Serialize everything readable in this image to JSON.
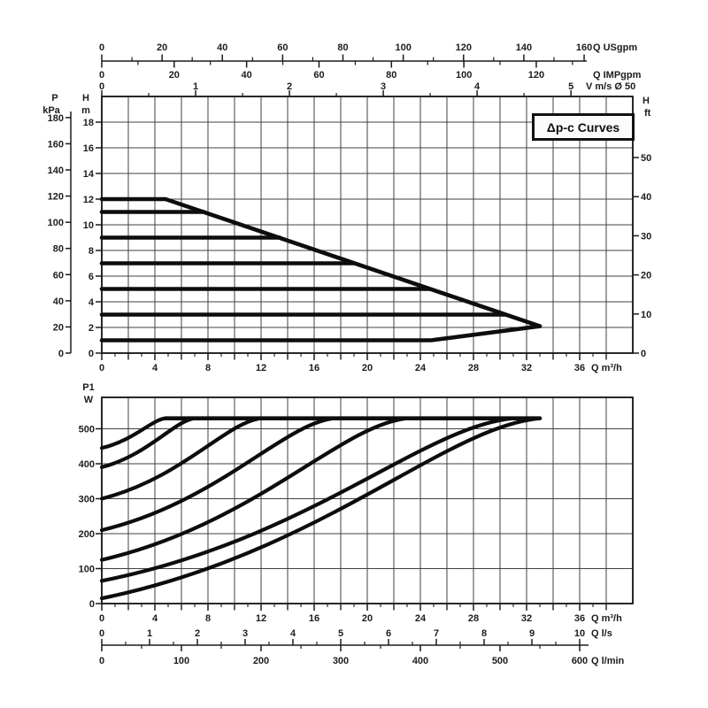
{
  "title_box": {
    "label": "Δp-c Curves"
  },
  "colors": {
    "ink": "#1c1c1c",
    "curve": "#0d0d0d",
    "grid": "#404040",
    "background": "#ffffff"
  },
  "chart_data": [
    {
      "type": "line",
      "title": "Δp-c Curves",
      "xlabel": "Q m³/h",
      "xlim": [
        0,
        40
      ],
      "ylim_m": [
        0,
        20
      ],
      "x_ticks_m3h": [
        0,
        4,
        8,
        12,
        16,
        20,
        24,
        28,
        32,
        36
      ],
      "left_axes": [
        {
          "name": "pressure-kpa",
          "label_lines": [
            "P",
            "kPa"
          ],
          "ticks": [
            180,
            160,
            140,
            120,
            100,
            80,
            60,
            40,
            20,
            0
          ],
          "m_per_unit": 0.10197
        },
        {
          "name": "head-m",
          "label_lines": [
            "H",
            "m"
          ],
          "ticks": [
            18,
            16,
            14,
            12,
            10,
            8,
            6,
            4,
            2,
            0
          ],
          "m_per_unit": 1
        }
      ],
      "right_axis": {
        "name": "head-ft",
        "label_lines": [
          "H",
          "ft"
        ],
        "ticks": [
          50,
          40,
          30,
          20,
          10,
          0
        ],
        "m_per_unit": 0.3048
      },
      "top_axes": [
        {
          "name": "flow-usgpm",
          "label": "Q USgpm",
          "ticks": [
            0,
            20,
            40,
            60,
            80,
            100,
            120,
            140,
            160
          ],
          "minor_step": 10,
          "max": 160,
          "m3h_per_unit": 0.2271,
          "side": "up"
        },
        {
          "name": "flow-impgpm",
          "label": "Q IMPgpm",
          "ticks": [
            0,
            20,
            40,
            60,
            80,
            100,
            120
          ],
          "minor_step": 10,
          "max": 133,
          "m3h_per_unit": 0.27276,
          "side": "down"
        },
        {
          "name": "velocity-ms",
          "label": "V m/s Ø 50",
          "ticks": [
            0,
            1,
            2,
            3,
            4,
            5
          ],
          "minor_step": 0.5,
          "max": 5,
          "m3h_per_unit": 7.0686,
          "side": "plot-top"
        }
      ],
      "series": [
        {
          "name": "envelope-max",
          "points": [
            [
              0,
              12
            ],
            [
              4.8,
              12
            ],
            [
              33,
              2.1
            ]
          ]
        },
        {
          "name": "setpoint-11m",
          "points": [
            [
              0,
              11
            ],
            [
              7.7,
              11
            ]
          ]
        },
        {
          "name": "setpoint-9m",
          "points": [
            [
              0,
              9
            ],
            [
              13.4,
              9
            ]
          ]
        },
        {
          "name": "setpoint-7m",
          "points": [
            [
              0,
              7
            ],
            [
              19.0,
              7
            ]
          ]
        },
        {
          "name": "setpoint-5m",
          "points": [
            [
              0,
              5
            ],
            [
              24.7,
              5
            ]
          ]
        },
        {
          "name": "setpoint-3m",
          "points": [
            [
              0,
              3
            ],
            [
              30.4,
              3
            ]
          ]
        },
        {
          "name": "setpoint-min",
          "points": [
            [
              0,
              1
            ],
            [
              24.8,
              1
            ],
            [
              33,
              2.1
            ]
          ]
        }
      ]
    },
    {
      "type": "line",
      "ylabel_lines": [
        "P1",
        "W"
      ],
      "xlabel": "Q m³/h",
      "xlim": [
        0,
        40
      ],
      "ylim_w": [
        0,
        590
      ],
      "y_ticks_w": [
        500,
        400,
        300,
        200,
        100,
        0
      ],
      "x_ticks_m3h": [
        0,
        4,
        8,
        12,
        16,
        20,
        24,
        28,
        32,
        36
      ],
      "bottom_axes": [
        {
          "name": "flow-ls",
          "label": "Q l/s",
          "ticks": [
            0,
            1,
            2,
            3,
            4,
            5,
            6,
            7,
            8,
            9,
            10
          ],
          "minor_step": 0.5,
          "max": 10,
          "m3h_per_unit": 3.6
        },
        {
          "name": "flow-lmin",
          "label": "Q l/min",
          "ticks": [
            0,
            100,
            200,
            300,
            400,
            500,
            600
          ],
          "minor_step": 50,
          "max": 600,
          "m3h_per_unit": 0.06
        }
      ],
      "plateau": {
        "p1_w": 530,
        "q_from": 4.8,
        "q_to": 33
      },
      "series": [
        {
          "name": "power-max",
          "p1_start_w": 445,
          "q_join": 4.8
        },
        {
          "name": "power-11m",
          "p1_start_w": 390,
          "q_join": 7
        },
        {
          "name": "power-9m",
          "p1_start_w": 300,
          "q_join": 12
        },
        {
          "name": "power-7m",
          "p1_start_w": 210,
          "q_join": 17.5
        },
        {
          "name": "power-5m",
          "p1_start_w": 125,
          "q_join": 23
        },
        {
          "name": "power-3m",
          "p1_start_w": 65,
          "q_join": 31
        },
        {
          "name": "power-min",
          "p1_start_w": 15,
          "q_join": 33
        }
      ]
    }
  ]
}
